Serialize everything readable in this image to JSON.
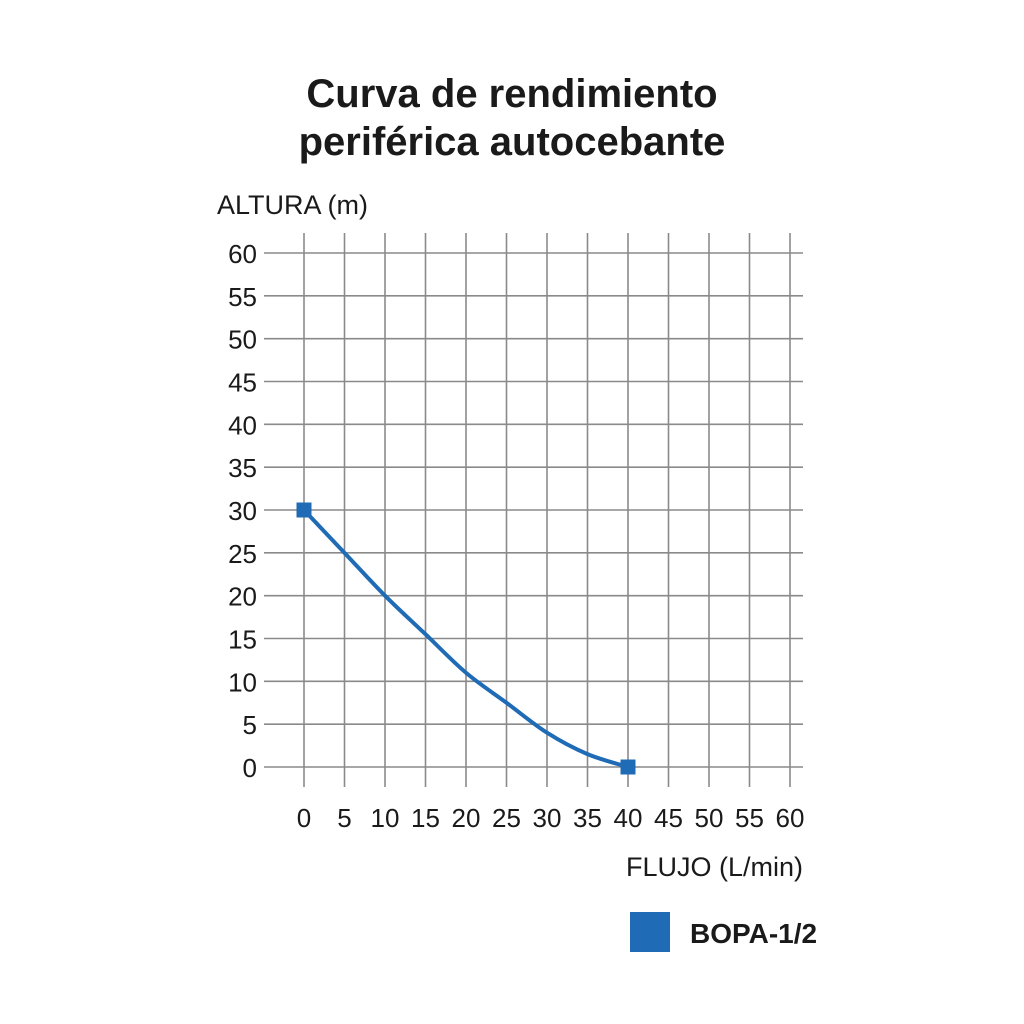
{
  "chart_data": {
    "type": "line",
    "title_lines": [
      "Curva de rendimiento",
      "periférica autocebante"
    ],
    "ylabel": "ALTURA (m)",
    "xlabel": "FLUJO (L/min)",
    "xlim": [
      0,
      60
    ],
    "ylim": [
      0,
      60
    ],
    "x_ticks": [
      "0",
      "5",
      "10",
      "15",
      "20",
      "25",
      "30",
      "35",
      "40",
      "45",
      "50",
      "55",
      "60"
    ],
    "y_ticks": [
      "0",
      "5",
      "10",
      "15",
      "20",
      "25",
      "30",
      "35",
      "40",
      "45",
      "50",
      "55",
      "60"
    ],
    "grid": true,
    "legend_position": "bottom-right",
    "series": [
      {
        "name": "BOPA-1/2",
        "color": "#1f6bb5",
        "x": [
          0,
          5,
          10,
          15,
          20,
          25,
          30,
          35,
          40
        ],
        "y": [
          30,
          25,
          20,
          15.5,
          11,
          7.5,
          4,
          1.5,
          0
        ],
        "end_markers": [
          {
            "x": 0,
            "y": 30
          },
          {
            "x": 40,
            "y": 0
          }
        ]
      }
    ]
  }
}
